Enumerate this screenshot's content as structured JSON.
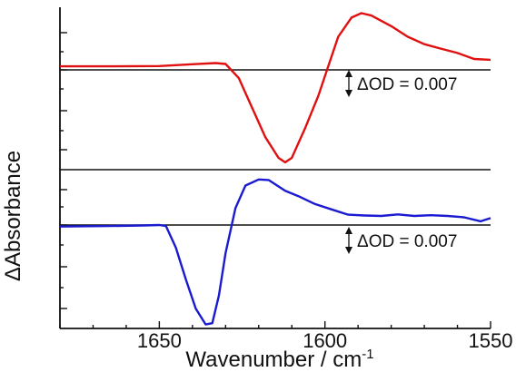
{
  "chart_data": [
    {
      "type": "line",
      "panel": "top",
      "series": [
        {
          "color": "#e01010",
          "x": [
            1680,
            1665,
            1650,
            1640,
            1633,
            1630,
            1626,
            1622,
            1618,
            1614,
            1612,
            1610,
            1606,
            1602,
            1599,
            1596,
            1592,
            1589,
            1586,
            1580,
            1575,
            1570,
            1565,
            1560,
            1555,
            1550
          ],
          "y": [
            0.0,
            0.0,
            0.0001,
            0.0007,
            0.0011,
            0.0008,
            -0.004,
            -0.014,
            -0.024,
            -0.031,
            -0.0325,
            -0.031,
            -0.021,
            -0.01,
            0.0,
            0.01,
            0.0165,
            0.018,
            0.0172,
            0.0136,
            0.01,
            0.0075,
            0.006,
            0.0045,
            0.0025,
            0.0022
          ]
        }
      ],
      "ylim": [
        -0.035,
        0.02
      ],
      "scale_bar_label": "ΔOD = 0.007"
    },
    {
      "type": "line",
      "panel": "bottom",
      "series": [
        {
          "color": "#1a1ad0",
          "x": [
            1680,
            1665,
            1655,
            1650,
            1648,
            1645,
            1642,
            1639,
            1636,
            1634,
            1632,
            1630,
            1627,
            1624,
            1620,
            1617,
            1612,
            1608,
            1603,
            1598,
            1593,
            1588,
            1583,
            1578,
            1573,
            1568,
            1563,
            1558,
            1553,
            1550
          ],
          "y": [
            0.0,
            0.0002,
            0.0004,
            0.0006,
            0.0002,
            -0.008,
            -0.02,
            -0.031,
            -0.037,
            -0.0365,
            -0.026,
            -0.01,
            0.007,
            0.0155,
            0.0178,
            0.0176,
            0.0135,
            0.0115,
            0.0085,
            0.0065,
            0.0045,
            0.0042,
            0.004,
            0.0046,
            0.004,
            0.0043,
            0.004,
            0.0035,
            0.002,
            0.0032
          ]
        }
      ],
      "ylim": [
        -0.0385,
        0.0215
      ],
      "scale_bar_label": "ΔOD = 0.007"
    }
  ],
  "axes": {
    "xlabel": "Wavenumber / cm",
    "xlabel_superscript": "-1",
    "ylabel": "ΔAbsorbance",
    "xlim": [
      1680,
      1550
    ],
    "xticks": [
      1650,
      1600,
      1550
    ],
    "xtick_labels": [
      "1650",
      "1600",
      "1550"
    ]
  }
}
